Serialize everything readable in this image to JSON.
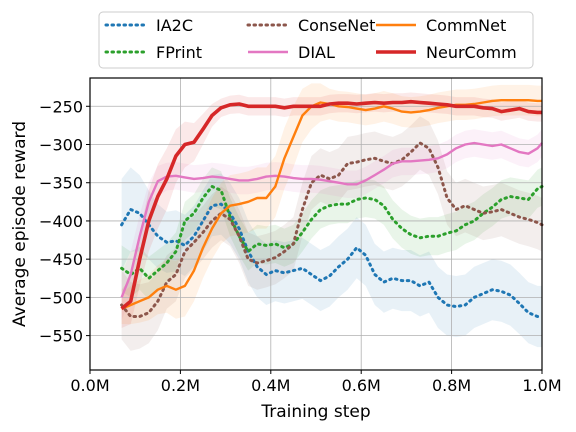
{
  "chart_data": {
    "type": "line",
    "title": "",
    "xlabel": "Training step",
    "ylabel": "Average episode reward",
    "xlim": [
      0,
      1.0
    ],
    "ylim": [
      -595,
      -213
    ],
    "xticks": [
      0,
      0.2,
      0.4,
      0.6,
      0.8,
      1.0
    ],
    "xtick_labels": [
      "0.0M",
      "0.2M",
      "0.4M",
      "0.6M",
      "0.8M",
      "1.0M"
    ],
    "yticks": [
      -550,
      -500,
      -450,
      -400,
      -350,
      -300,
      -250
    ],
    "ytick_labels": [
      "−550",
      "−500",
      "−450",
      "−400",
      "−350",
      "−300",
      "−250"
    ],
    "grid": true,
    "legend_position": "top-outside",
    "series": [
      {
        "name": "IA2C",
        "color": "#1f77b4",
        "line": "dotted",
        "x": [
          0.07,
          0.09,
          0.11,
          0.13,
          0.15,
          0.17,
          0.19,
          0.21,
          0.23,
          0.25,
          0.27,
          0.29,
          0.31,
          0.33,
          0.35,
          0.37,
          0.39,
          0.41,
          0.43,
          0.45,
          0.47,
          0.49,
          0.51,
          0.53,
          0.55,
          0.57,
          0.59,
          0.61,
          0.63,
          0.65,
          0.67,
          0.69,
          0.71,
          0.73,
          0.75,
          0.77,
          0.79,
          0.81,
          0.83,
          0.85,
          0.87,
          0.89,
          0.91,
          0.93,
          0.95,
          0.97,
          0.99,
          1.0
        ],
        "y": [
          -405,
          -385,
          -390,
          -405,
          -420,
          -428,
          -426,
          -432,
          -420,
          -400,
          -380,
          -378,
          -390,
          -410,
          -440,
          -460,
          -470,
          -465,
          -468,
          -465,
          -462,
          -470,
          -478,
          -472,
          -460,
          -450,
          -435,
          -445,
          -470,
          -480,
          -475,
          -478,
          -478,
          -485,
          -480,
          -500,
          -510,
          -512,
          -510,
          -500,
          -495,
          -490,
          -492,
          -497,
          -508,
          -520,
          -525,
          -525
        ],
        "spread": [
          60,
          55,
          50,
          45,
          42,
          40,
          40,
          40,
          40,
          40,
          40,
          40,
          40,
          40,
          40,
          40,
          40,
          40,
          40,
          40,
          40,
          40,
          40,
          40,
          40,
          40,
          40,
          40,
          40,
          40,
          40,
          40,
          40,
          40,
          40,
          40,
          40,
          40,
          40,
          40,
          40,
          40,
          40,
          40,
          40,
          40,
          40,
          40
        ]
      },
      {
        "name": "FPrint",
        "color": "#2ca02c",
        "line": "dotted",
        "x": [
          0.07,
          0.09,
          0.11,
          0.13,
          0.15,
          0.17,
          0.19,
          0.21,
          0.23,
          0.25,
          0.27,
          0.29,
          0.31,
          0.33,
          0.35,
          0.37,
          0.39,
          0.41,
          0.43,
          0.45,
          0.47,
          0.49,
          0.51,
          0.53,
          0.55,
          0.57,
          0.59,
          0.61,
          0.63,
          0.65,
          0.67,
          0.69,
          0.71,
          0.73,
          0.75,
          0.77,
          0.79,
          0.81,
          0.83,
          0.85,
          0.87,
          0.89,
          0.91,
          0.93,
          0.95,
          0.97,
          0.99,
          1.0
        ],
        "y": [
          -462,
          -470,
          -462,
          -475,
          -465,
          -455,
          -440,
          -400,
          -390,
          -370,
          -355,
          -360,
          -395,
          -420,
          -440,
          -430,
          -432,
          -430,
          -435,
          -430,
          -415,
          -398,
          -385,
          -380,
          -378,
          -378,
          -372,
          -370,
          -372,
          -380,
          -398,
          -410,
          -418,
          -422,
          -420,
          -420,
          -416,
          -413,
          -405,
          -400,
          -390,
          -382,
          -372,
          -368,
          -370,
          -372,
          -358,
          -355
        ],
        "spread": [
          30,
          30,
          28,
          28,
          27,
          26,
          25,
          25,
          25,
          25,
          25,
          25,
          25,
          25,
          25,
          25,
          25,
          25,
          25,
          25,
          25,
          25,
          25,
          25,
          25,
          25,
          25,
          25,
          25,
          25,
          25,
          25,
          25,
          25,
          25,
          25,
          25,
          25,
          25,
          25,
          25,
          25,
          25,
          25,
          25,
          25,
          25,
          25
        ]
      },
      {
        "name": "ConseNet",
        "color": "#8c564b",
        "line": "dotted",
        "x": [
          0.07,
          0.09,
          0.11,
          0.13,
          0.15,
          0.17,
          0.19,
          0.21,
          0.23,
          0.25,
          0.27,
          0.29,
          0.31,
          0.33,
          0.35,
          0.37,
          0.39,
          0.41,
          0.43,
          0.45,
          0.47,
          0.49,
          0.51,
          0.53,
          0.55,
          0.57,
          0.59,
          0.61,
          0.63,
          0.65,
          0.67,
          0.69,
          0.71,
          0.73,
          0.75,
          0.77,
          0.79,
          0.81,
          0.83,
          0.85,
          0.87,
          0.89,
          0.91,
          0.93,
          0.95,
          0.97,
          0.99,
          1.0
        ],
        "y": [
          -510,
          -525,
          -525,
          -520,
          -505,
          -480,
          -470,
          -440,
          -428,
          -415,
          -400,
          -390,
          -398,
          -420,
          -450,
          -455,
          -452,
          -448,
          -440,
          -430,
          -385,
          -350,
          -340,
          -345,
          -340,
          -325,
          -323,
          -320,
          -318,
          -322,
          -325,
          -320,
          -310,
          -298,
          -305,
          -330,
          -370,
          -385,
          -380,
          -385,
          -390,
          -388,
          -385,
          -390,
          -395,
          -398,
          -402,
          -405
        ],
        "spread": [
          45,
          45,
          42,
          40,
          38,
          35,
          35,
          35,
          35,
          35,
          35,
          35,
          35,
          35,
          35,
          35,
          35,
          35,
          35,
          35,
          35,
          35,
          35,
          35,
          35,
          35,
          35,
          35,
          35,
          35,
          35,
          35,
          35,
          35,
          35,
          35,
          35,
          35,
          35,
          35,
          35,
          35,
          35,
          35,
          35,
          35,
          35,
          35
        ]
      },
      {
        "name": "DIAL",
        "color": "#e377c2",
        "line": "solid",
        "x": [
          0.07,
          0.09,
          0.11,
          0.13,
          0.15,
          0.17,
          0.19,
          0.21,
          0.23,
          0.25,
          0.27,
          0.29,
          0.31,
          0.33,
          0.35,
          0.37,
          0.39,
          0.41,
          0.43,
          0.45,
          0.47,
          0.49,
          0.51,
          0.53,
          0.55,
          0.57,
          0.59,
          0.61,
          0.63,
          0.65,
          0.67,
          0.69,
          0.71,
          0.73,
          0.75,
          0.77,
          0.79,
          0.81,
          0.83,
          0.85,
          0.87,
          0.89,
          0.91,
          0.93,
          0.95,
          0.97,
          0.99,
          1.0
        ],
        "y": [
          -500,
          -470,
          -420,
          -375,
          -348,
          -342,
          -341,
          -343,
          -345,
          -344,
          -342,
          -343,
          -345,
          -347,
          -347,
          -345,
          -342,
          -341,
          -342,
          -344,
          -345,
          -345,
          -346,
          -348,
          -350,
          -352,
          -352,
          -347,
          -340,
          -333,
          -325,
          -322,
          -322,
          -321,
          -320,
          -318,
          -313,
          -305,
          -300,
          -298,
          -300,
          -302,
          -300,
          -305,
          -310,
          -312,
          -305,
          -298
        ],
        "spread": [
          30,
          30,
          28,
          25,
          20,
          18,
          18,
          18,
          18,
          18,
          18,
          18,
          18,
          18,
          18,
          18,
          18,
          18,
          18,
          18,
          18,
          18,
          18,
          18,
          18,
          18,
          18,
          18,
          18,
          18,
          18,
          18,
          18,
          18,
          18,
          18,
          18,
          18,
          18,
          18,
          18,
          18,
          18,
          18,
          18,
          18,
          18,
          18
        ]
      },
      {
        "name": "CommNet",
        "color": "#ff7f0e",
        "line": "solid",
        "x": [
          0.07,
          0.09,
          0.11,
          0.13,
          0.15,
          0.17,
          0.19,
          0.21,
          0.23,
          0.25,
          0.27,
          0.29,
          0.31,
          0.33,
          0.35,
          0.37,
          0.39,
          0.41,
          0.43,
          0.45,
          0.47,
          0.49,
          0.51,
          0.53,
          0.55,
          0.57,
          0.59,
          0.61,
          0.63,
          0.65,
          0.67,
          0.69,
          0.71,
          0.73,
          0.75,
          0.77,
          0.79,
          0.81,
          0.83,
          0.85,
          0.87,
          0.89,
          0.91,
          0.93,
          0.95,
          0.97,
          0.99,
          1.0
        ],
        "y": [
          -515,
          -510,
          -505,
          -500,
          -490,
          -485,
          -490,
          -485,
          -465,
          -435,
          -410,
          -390,
          -380,
          -378,
          -375,
          -370,
          -370,
          -355,
          -318,
          -290,
          -262,
          -250,
          -245,
          -247,
          -250,
          -251,
          -253,
          -255,
          -253,
          -250,
          -253,
          -257,
          -258,
          -257,
          -255,
          -252,
          -250,
          -248,
          -248,
          -247,
          -245,
          -243,
          -242,
          -242,
          -242,
          -242,
          -243,
          -243
        ],
        "spread": [
          20,
          25,
          28,
          30,
          32,
          35,
          38,
          40,
          40,
          40,
          40,
          40,
          40,
          40,
          40,
          40,
          40,
          40,
          40,
          40,
          35,
          30,
          25,
          20,
          20,
          20,
          20,
          20,
          20,
          20,
          20,
          20,
          20,
          20,
          20,
          20,
          20,
          20,
          20,
          20,
          20,
          20,
          20,
          20,
          20,
          20,
          20,
          20
        ]
      },
      {
        "name": "NeurComm",
        "color": "#d62728",
        "line": "solid-thick",
        "x": [
          0.07,
          0.09,
          0.11,
          0.13,
          0.15,
          0.17,
          0.19,
          0.21,
          0.23,
          0.25,
          0.27,
          0.29,
          0.31,
          0.33,
          0.35,
          0.37,
          0.39,
          0.41,
          0.43,
          0.45,
          0.47,
          0.49,
          0.51,
          0.53,
          0.55,
          0.57,
          0.59,
          0.61,
          0.63,
          0.65,
          0.67,
          0.69,
          0.71,
          0.73,
          0.75,
          0.77,
          0.79,
          0.81,
          0.83,
          0.85,
          0.87,
          0.89,
          0.91,
          0.93,
          0.95,
          0.97,
          0.99,
          1.0
        ],
        "y": [
          -515,
          -505,
          -450,
          -400,
          -368,
          -345,
          -315,
          -300,
          -297,
          -280,
          -262,
          -252,
          -248,
          -247,
          -250,
          -250,
          -250,
          -250,
          -252,
          -250,
          -250,
          -250,
          -250,
          -247,
          -246,
          -246,
          -247,
          -246,
          -245,
          -246,
          -245,
          -245,
          -244,
          -245,
          -246,
          -247,
          -248,
          -250,
          -250,
          -250,
          -252,
          -253,
          -257,
          -255,
          -253,
          -257,
          -258,
          -258
        ],
        "spread": [
          25,
          30,
          35,
          40,
          42,
          40,
          35,
          30,
          25,
          20,
          15,
          12,
          12,
          12,
          12,
          12,
          12,
          12,
          12,
          12,
          12,
          12,
          12,
          12,
          12,
          12,
          12,
          12,
          12,
          12,
          12,
          12,
          12,
          12,
          12,
          12,
          12,
          12,
          12,
          12,
          12,
          12,
          12,
          12,
          12,
          12,
          12,
          12
        ]
      }
    ]
  }
}
